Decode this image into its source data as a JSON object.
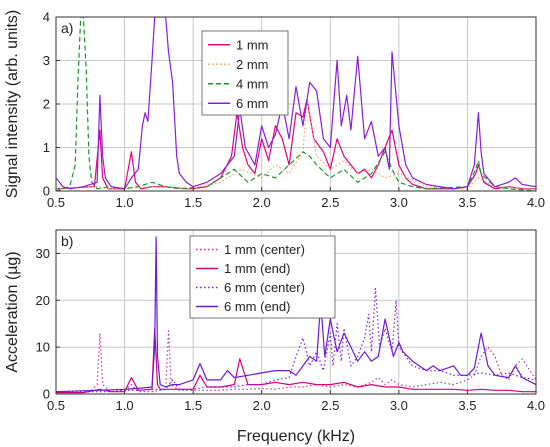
{
  "chart_data": [
    {
      "type": "line",
      "panel_label": "a)",
      "ylabel": "Signal intensity (arb. units)",
      "xlim": [
        0.5,
        4.0
      ],
      "ylim": [
        0,
        4
      ],
      "xticks": [
        "0.5",
        "1.0",
        "1.5",
        "2.0",
        "2.5",
        "3.0",
        "3.5",
        "4.0"
      ],
      "yticks": [
        "0",
        "1",
        "2",
        "3",
        "4"
      ],
      "grid": true,
      "legend_position": "top-center",
      "series": [
        {
          "name": "1 mm",
          "color": "#e6007e",
          "dash": "solid",
          "x": [
            0.5,
            0.78,
            0.82,
            0.84,
            0.88,
            1.0,
            1.05,
            1.08,
            1.12,
            1.2,
            1.3,
            1.45,
            1.5,
            1.6,
            1.7,
            1.78,
            1.82,
            1.86,
            1.9,
            1.95,
            2.0,
            2.05,
            2.1,
            2.15,
            2.2,
            2.25,
            2.3,
            2.33,
            2.38,
            2.45,
            2.5,
            2.55,
            2.6,
            2.65,
            2.7,
            2.75,
            2.8,
            2.85,
            2.9,
            2.95,
            3.0,
            3.05,
            3.1,
            3.2,
            3.4,
            3.5,
            3.56,
            3.58,
            3.62,
            3.7,
            3.8,
            3.9,
            4.0
          ],
          "y": [
            0.05,
            0.1,
            1.4,
            0.3,
            0.05,
            0.05,
            0.9,
            0.2,
            0.05,
            0.1,
            0.1,
            0.05,
            0.05,
            0.1,
            0.3,
            0.8,
            1.8,
            1.0,
            0.6,
            0.4,
            1.2,
            0.7,
            1.5,
            1.2,
            0.6,
            1.8,
            1.7,
            2.1,
            1.2,
            0.9,
            0.5,
            1.2,
            0.8,
            0.6,
            0.4,
            0.5,
            0.3,
            0.6,
            1.0,
            1.4,
            0.6,
            0.3,
            0.15,
            0.05,
            0.05,
            0.1,
            0.4,
            0.6,
            0.2,
            0.05,
            0.1,
            0.05,
            0.05
          ]
        },
        {
          "name": "2 mm",
          "color": "#f5a25d",
          "dash": "dot",
          "x": [
            0.5,
            0.8,
            0.9,
            1.2,
            1.5,
            1.7,
            1.85,
            2.0,
            2.1,
            2.2,
            2.3,
            2.33,
            2.4,
            2.5,
            2.6,
            2.7,
            2.8,
            2.9,
            3.0,
            3.2,
            3.5,
            3.58,
            3.7,
            4.0
          ],
          "y": [
            0.05,
            0.1,
            0.05,
            0.1,
            0.05,
            0.2,
            0.5,
            0.3,
            0.6,
            0.4,
            0.9,
            2.1,
            0.8,
            0.5,
            0.7,
            0.4,
            0.5,
            0.3,
            0.4,
            0.1,
            0.05,
            0.3,
            0.1,
            0.05
          ]
        },
        {
          "name": "4 mm",
          "color": "#1a9a2a",
          "dash": "dash",
          "x": [
            0.5,
            0.6,
            0.64,
            0.66,
            0.68,
            0.7,
            0.72,
            0.74,
            0.76,
            0.8,
            0.9,
            1.0,
            1.1,
            1.2,
            1.3,
            1.4,
            1.6,
            1.7,
            1.8,
            1.9,
            2.0,
            2.1,
            2.2,
            2.3,
            2.35,
            2.4,
            2.5,
            2.6,
            2.7,
            2.8,
            2.9,
            2.95,
            3.0,
            3.1,
            3.2,
            3.5,
            3.56,
            3.58,
            3.6,
            3.7,
            3.8,
            4.0
          ],
          "y": [
            0.0,
            0.1,
            0.6,
            2.5,
            4.0,
            4.0,
            2.8,
            0.8,
            0.2,
            0.05,
            0.1,
            0.05,
            0.1,
            0.2,
            0.1,
            0.05,
            0.1,
            0.3,
            0.5,
            0.2,
            0.4,
            0.3,
            0.6,
            0.9,
            0.8,
            0.6,
            0.3,
            0.5,
            0.2,
            0.4,
            0.9,
            0.5,
            0.2,
            0.1,
            0.05,
            0.1,
            0.5,
            0.7,
            0.4,
            0.1,
            0.05,
            0.0
          ]
        },
        {
          "name": "6 mm",
          "color": "#8a1ddb",
          "dash": "solid",
          "x": [
            0.5,
            0.55,
            0.6,
            0.7,
            0.8,
            0.82,
            0.84,
            0.86,
            0.9,
            1.0,
            1.05,
            1.1,
            1.13,
            1.15,
            1.17,
            1.2,
            1.22,
            1.24,
            1.26,
            1.28,
            1.3,
            1.32,
            1.35,
            1.38,
            1.4,
            1.45,
            1.5,
            1.6,
            1.7,
            1.8,
            1.84,
            1.88,
            1.95,
            2.0,
            2.05,
            2.1,
            2.15,
            2.2,
            2.25,
            2.3,
            2.35,
            2.4,
            2.45,
            2.5,
            2.55,
            2.58,
            2.62,
            2.65,
            2.7,
            2.75,
            2.8,
            2.85,
            2.9,
            2.93,
            2.95,
            3.0,
            3.05,
            3.1,
            3.2,
            3.3,
            3.4,
            3.5,
            3.55,
            3.58,
            3.6,
            3.62,
            3.7,
            3.8,
            3.85,
            3.9,
            4.0
          ],
          "y": [
            0.3,
            0.1,
            0.05,
            0.1,
            0.2,
            2.2,
            0.8,
            0.3,
            0.1,
            0.05,
            0.3,
            0.5,
            1.5,
            1.8,
            1.6,
            3.0,
            4.0,
            4.0,
            4.0,
            4.0,
            4.0,
            3.2,
            2.5,
            0.8,
            0.4,
            0.2,
            0.1,
            0.2,
            0.4,
            0.8,
            1.9,
            1.0,
            0.6,
            1.5,
            1.0,
            1.3,
            2.0,
            1.2,
            2.4,
            1.5,
            2.5,
            2.3,
            1.2,
            1.0,
            3.0,
            1.5,
            2.2,
            1.4,
            3.1,
            1.2,
            1.6,
            0.8,
            1.0,
            0.5,
            3.2,
            1.5,
            0.6,
            0.3,
            0.15,
            0.1,
            0.05,
            0.1,
            0.6,
            1.8,
            0.9,
            0.4,
            0.1,
            0.2,
            0.3,
            0.15,
            0.1
          ]
        }
      ]
    },
    {
      "type": "line",
      "panel_label": "b)",
      "xlabel": "Frequency (kHz)",
      "ylabel": "Acceleration (µg)",
      "xlim": [
        0.5,
        4.0
      ],
      "ylim": [
        0,
        35
      ],
      "xticks": [
        "0.5",
        "1.0",
        "1.5",
        "2.0",
        "2.5",
        "3.0",
        "3.5",
        "4.0"
      ],
      "yticks": [
        "0",
        "10",
        "20",
        "30"
      ],
      "grid": true,
      "legend_position": "top-center",
      "series": [
        {
          "name": "1 mm (center)",
          "color": "#c0399e",
          "dash": "dot",
          "x": [
            0.5,
            0.75,
            0.8,
            0.82,
            0.84,
            0.9,
            1.0,
            1.05,
            1.1,
            1.2,
            1.3,
            1.32,
            1.34,
            1.4,
            1.5,
            1.6,
            1.7,
            1.8,
            1.9,
            2.0,
            2.1,
            2.2,
            2.3,
            2.4,
            2.5,
            2.6,
            2.7,
            2.8,
            2.85,
            2.9,
            2.95,
            3.0,
            3.1,
            3.2,
            3.3,
            3.4,
            3.5,
            3.55,
            3.6,
            3.65,
            3.7,
            3.75,
            3.8,
            3.85,
            3.9,
            4.0
          ],
          "y": [
            0.5,
            0.5,
            2.0,
            13.0,
            2.0,
            0.5,
            0.8,
            2.0,
            0.5,
            0.5,
            1.0,
            13.5,
            2.0,
            0.8,
            0.8,
            0.8,
            0.8,
            1.0,
            1.0,
            1.2,
            1.0,
            1.5,
            1.5,
            2.0,
            1.5,
            2.0,
            1.5,
            2.5,
            3.5,
            2.0,
            3.0,
            2.0,
            1.5,
            2.0,
            2.5,
            2.0,
            3.0,
            4.0,
            8.0,
            10.0,
            8.0,
            4.0,
            3.0,
            6.0,
            7.5,
            3.0
          ]
        },
        {
          "name": "1 mm (end)",
          "color": "#d5007a",
          "dash": "solid",
          "x": [
            0.5,
            0.7,
            0.82,
            0.9,
            1.0,
            1.05,
            1.1,
            1.2,
            1.22,
            1.24,
            1.26,
            1.3,
            1.4,
            1.5,
            1.55,
            1.6,
            1.7,
            1.8,
            1.84,
            1.9,
            2.0,
            2.1,
            2.2,
            2.3,
            2.4,
            2.5,
            2.6,
            2.7,
            2.8,
            2.9,
            3.0,
            3.1,
            3.2,
            3.3,
            3.4,
            3.5,
            3.6,
            3.7,
            3.8,
            3.9,
            4.0
          ],
          "y": [
            0.3,
            0.3,
            1.0,
            0.5,
            0.5,
            3.5,
            0.8,
            1.0,
            14.0,
            2.0,
            1.0,
            1.0,
            1.0,
            1.0,
            4.0,
            1.5,
            1.5,
            2.0,
            7.5,
            2.0,
            2.0,
            2.5,
            2.0,
            2.5,
            2.0,
            2.0,
            2.5,
            1.5,
            2.0,
            1.5,
            1.5,
            1.0,
            1.0,
            1.0,
            1.0,
            0.8,
            1.0,
            0.8,
            0.8,
            0.5,
            0.5
          ]
        },
        {
          "name": "6 mm (center)",
          "color": "#8a1ddb",
          "dash": "dot",
          "x": [
            0.5,
            0.8,
            0.9,
            1.0,
            1.1,
            1.2,
            1.3,
            1.35,
            1.4,
            1.5,
            1.6,
            1.7,
            1.8,
            1.9,
            2.0,
            2.1,
            2.2,
            2.25,
            2.3,
            2.35,
            2.4,
            2.45,
            2.5,
            2.52,
            2.55,
            2.58,
            2.6,
            2.65,
            2.7,
            2.75,
            2.78,
            2.8,
            2.83,
            2.86,
            2.9,
            2.95,
            2.98,
            3.0,
            3.05,
            3.1,
            3.2,
            3.3,
            3.4,
            3.5,
            3.6,
            3.7,
            3.8,
            3.9,
            4.0
          ],
          "y": [
            0.5,
            0.5,
            0.5,
            0.8,
            0.8,
            1.0,
            1.0,
            3.0,
            1.0,
            1.0,
            1.5,
            1.5,
            1.5,
            2.0,
            2.0,
            3.0,
            3.5,
            8.0,
            12.0,
            6.0,
            9.0,
            5.0,
            13.0,
            6.0,
            15.0,
            7.0,
            14.0,
            6.0,
            8.0,
            12.0,
            17.0,
            9.0,
            22.5,
            10.0,
            14.0,
            9.0,
            20.0,
            10.0,
            8.0,
            6.0,
            5.0,
            5.0,
            4.0,
            4.0,
            4.5,
            4.0,
            4.5,
            3.5,
            3.0
          ]
        },
        {
          "name": "6 mm (end)",
          "color": "#6a1bd8",
          "dash": "solid",
          "x": [
            0.5,
            0.8,
            1.0,
            1.1,
            1.2,
            1.22,
            1.23,
            1.24,
            1.26,
            1.3,
            1.35,
            1.4,
            1.5,
            1.55,
            1.6,
            1.7,
            1.75,
            1.8,
            1.9,
            2.0,
            2.1,
            2.2,
            2.25,
            2.3,
            2.35,
            2.4,
            2.43,
            2.46,
            2.5,
            2.55,
            2.6,
            2.65,
            2.7,
            2.75,
            2.8,
            2.85,
            2.9,
            2.93,
            2.96,
            3.0,
            3.03,
            3.1,
            3.2,
            3.25,
            3.3,
            3.4,
            3.45,
            3.5,
            3.55,
            3.6,
            3.65,
            3.7,
            3.8,
            3.85,
            3.9,
            4.0
          ],
          "y": [
            0.5,
            0.8,
            1.0,
            1.2,
            1.5,
            10.0,
            33.5,
            8.0,
            2.0,
            1.5,
            2.0,
            2.0,
            3.0,
            6.5,
            3.0,
            3.0,
            5.0,
            3.5,
            4.0,
            4.5,
            5.0,
            5.0,
            4.0,
            6.0,
            8.0,
            7.0,
            19.5,
            8.0,
            16.0,
            9.0,
            13.0,
            10.0,
            7.0,
            9.0,
            7.0,
            8.0,
            16.0,
            12.0,
            8.0,
            11.0,
            9.0,
            7.0,
            5.0,
            6.0,
            5.0,
            6.0,
            4.0,
            4.0,
            5.5,
            13.0,
            6.0,
            4.0,
            3.5,
            6.0,
            3.5,
            2.0
          ]
        }
      ]
    }
  ]
}
